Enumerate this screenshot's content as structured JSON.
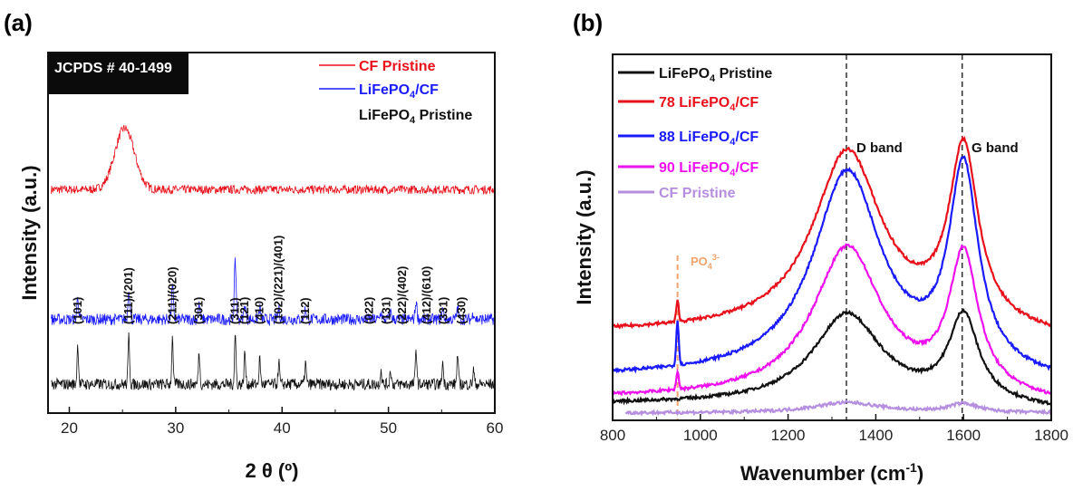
{
  "chart_data": [
    {
      "panel_label": "(a)",
      "type": "line",
      "xlabel": "2 θ (º)",
      "ylabel": "Intensity (a.u.)",
      "xlim": [
        18,
        60
      ],
      "xticks": [
        "20",
        "30",
        "40",
        "50",
        "60"
      ],
      "annotation": "JCPDS # 40-1499",
      "series": [
        {
          "name": "CF Pristine",
          "color": "#e8101b",
          "baseline": 0.62,
          "peaks": [
            [
              25.2,
              0.17,
              1.3
            ]
          ],
          "noise": 0.012
        },
        {
          "name": "LiFePO4/CF",
          "color": "#1a1aff",
          "baseline": 0.26,
          "peaks": [
            [
              20.8,
              0.06,
              0.12
            ],
            [
              25.6,
              0.09,
              0.12
            ],
            [
              29.7,
              0.09,
              0.12
            ],
            [
              32.2,
              0.04,
              0.12
            ],
            [
              35.6,
              0.16,
              0.12
            ],
            [
              36.5,
              0.04,
              0.12
            ],
            [
              37.9,
              0.03,
              0.12
            ],
            [
              39.7,
              0.03,
              0.12
            ],
            [
              42.2,
              0.03,
              0.12
            ],
            [
              49.3,
              0.02,
              0.12
            ],
            [
              50.2,
              0.02,
              0.12
            ],
            [
              52.6,
              0.05,
              0.12
            ],
            [
              55.1,
              0.03,
              0.12
            ],
            [
              56.5,
              0.03,
              0.12
            ],
            [
              58.0,
              0.02,
              0.12
            ]
          ],
          "noise": 0.016
        },
        {
          "name": "LiFePO4 Pristine",
          "color": "#111111",
          "baseline": 0.08,
          "peaks": [
            [
              20.8,
              0.11,
              0.1
            ],
            [
              25.6,
              0.14,
              0.1
            ],
            [
              29.7,
              0.13,
              0.1
            ],
            [
              32.2,
              0.09,
              0.1
            ],
            [
              35.6,
              0.14,
              0.1
            ],
            [
              36.5,
              0.09,
              0.1
            ],
            [
              37.9,
              0.07,
              0.1
            ],
            [
              39.7,
              0.06,
              0.1
            ],
            [
              42.2,
              0.06,
              0.1
            ],
            [
              49.3,
              0.04,
              0.1
            ],
            [
              50.2,
              0.04,
              0.1
            ],
            [
              52.6,
              0.1,
              0.1
            ],
            [
              55.1,
              0.06,
              0.1
            ],
            [
              56.5,
              0.08,
              0.1
            ],
            [
              58.0,
              0.04,
              0.1
            ]
          ],
          "noise": 0.016
        }
      ],
      "legend": [
        {
          "label": "CF Pristine",
          "color": "#e8101b"
        },
        {
          "label": "LiFePO4/CF",
          "color": "#1a1aff"
        },
        {
          "label": "LiFePO4 Pristine",
          "color": "#111111"
        }
      ],
      "reflections": [
        {
          "label": "(101)",
          "x": 20.8
        },
        {
          "label": "(111)/(201)",
          "x": 25.6
        },
        {
          "label": "(211)/(020)",
          "x": 29.7
        },
        {
          "label": "(301)",
          "x": 32.2
        },
        {
          "label": "(311)",
          "x": 35.6
        },
        {
          "label": "(121)",
          "x": 36.5
        },
        {
          "label": "(410)",
          "x": 37.9
        },
        {
          "label": "(102)/(221)/(401)",
          "x": 39.7
        },
        {
          "label": "(112)",
          "x": 42.2
        },
        {
          "label": "(022)",
          "x": 48.2
        },
        {
          "label": "(131)",
          "x": 49.8
        },
        {
          "label": "(222)/(402)",
          "x": 51.3
        },
        {
          "label": "(412)/(610)",
          "x": 53.6
        },
        {
          "label": "(331)",
          "x": 55.2
        },
        {
          "label": "(430)",
          "x": 56.9
        }
      ]
    },
    {
      "panel_label": "(b)",
      "type": "line",
      "xlabel": "Wavenumber (cm-1)",
      "ylabel": "Intensity (a.u.)",
      "xlim": [
        800,
        1800
      ],
      "xticks": [
        "800",
        "1000",
        "1200",
        "1400",
        "1600",
        "1800"
      ],
      "series": [
        {
          "name": "LiFePO4 Pristine",
          "color": "#111111",
          "baseline": 0.03,
          "d_height": 0.3,
          "g_height": 0.28,
          "po4_height": 0.0
        },
        {
          "name": "78 LiFePO4/CF",
          "color": "#e8101b",
          "baseline": 0.27,
          "d_height": 0.6,
          "g_height": 0.58,
          "po4_height": 0.07
        },
        {
          "name": "88 LiFePO4/CF",
          "color": "#1a1aff",
          "baseline": 0.12,
          "d_height": 0.68,
          "g_height": 0.66,
          "po4_height": 0.15
        },
        {
          "name": "90 LiFePO4/CF",
          "color": "#ee10ee",
          "baseline": 0.05,
          "d_height": 0.5,
          "g_height": 0.45,
          "po4_height": 0.06
        },
        {
          "name": "CF Pristine",
          "color": "#b58ee0",
          "baseline": 0.0,
          "d_height": 0.035,
          "g_height": 0.03,
          "po4_height": 0.0
        }
      ],
      "legend": [
        {
          "label": "LiFePO4 Pristine",
          "color": "#111111"
        },
        {
          "label": "78 LiFePO4/CF",
          "color": "#e8101b"
        },
        {
          "label": "88 LiFePO4/CF",
          "color": "#1a1aff"
        },
        {
          "label": "90 LiFePO4/CF",
          "color": "#ee10ee"
        },
        {
          "label": "CF Pristine",
          "color": "#b58ee0"
        }
      ],
      "reference_lines": [
        {
          "x": 1333,
          "label": "D band",
          "color": "#222222"
        },
        {
          "x": 1597,
          "label": "G band",
          "color": "#222222"
        },
        {
          "x": 948,
          "label": "PO43-",
          "color": "#f2a36b"
        }
      ]
    }
  ]
}
